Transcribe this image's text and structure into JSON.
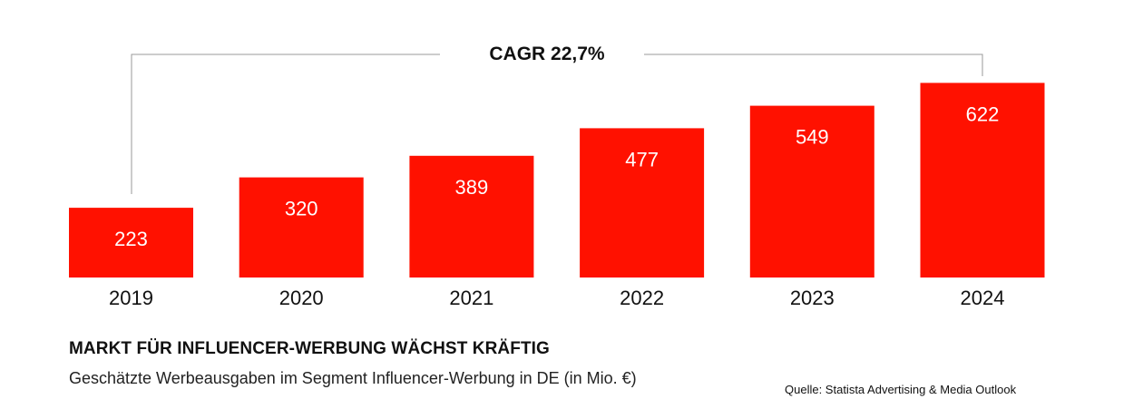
{
  "chart_data": {
    "type": "bar",
    "categories": [
      "2019",
      "2020",
      "2021",
      "2022",
      "2023",
      "2024"
    ],
    "values": [
      223,
      320,
      389,
      477,
      549,
      622
    ],
    "title": "MARKT FÜR INFLUENCER-WERBUNG WÄCHST KRÄFTIG",
    "subtitle": "Geschätzte Werbeausgaben im Segment Influencer-Werbung in DE (in Mio. €)",
    "source": "Quelle: Statista Advertising & Media Outlook",
    "annotation": "CAGR 22,7%",
    "bar_color": "#ff1100",
    "value_label_color": "#ffffff",
    "grid": false,
    "legend": "none"
  }
}
